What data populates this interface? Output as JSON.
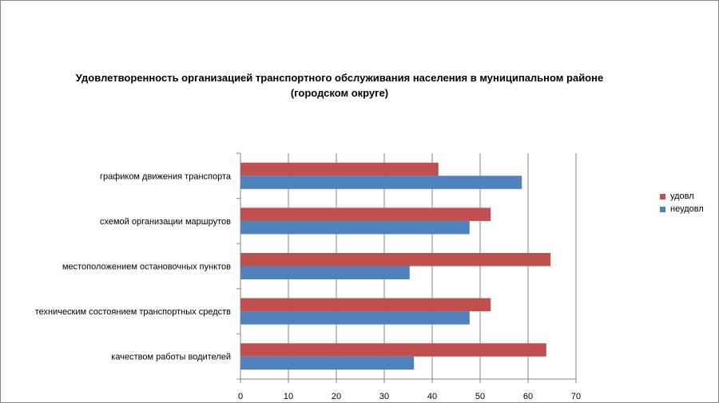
{
  "chart_data": {
    "type": "bar",
    "orientation": "horizontal",
    "title": [
      "Удовлетворенность организацией транспортного обслуживания населения в муниципальном районе",
      "(городском округе)"
    ],
    "categories": [
      "графиком движения транспорта",
      "схемой организации маршрутов",
      "местоположением остановочных пунктов",
      "техническим состоянием транспортных средств",
      "качеством работы водителей"
    ],
    "series": [
      {
        "name": "удовл",
        "color": "#C0504D",
        "values": [
          41.3,
          52.2,
          64.7,
          52.2,
          63.8
        ]
      },
      {
        "name": "неудовл",
        "color": "#4F81BD",
        "values": [
          58.7,
          47.8,
          35.3,
          47.8,
          36.2
        ]
      }
    ],
    "xlim": [
      0,
      70
    ],
    "xticks": [
      "0",
      "10",
      "20",
      "30",
      "40",
      "50",
      "60",
      "70"
    ],
    "grid": true,
    "legend_position": "right"
  }
}
